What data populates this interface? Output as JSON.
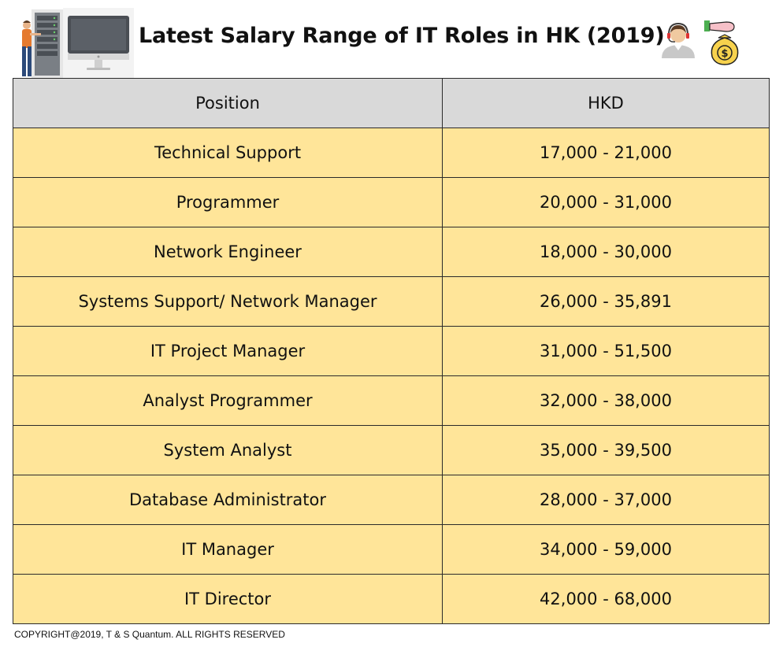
{
  "header": {
    "title": "Latest Salary Range of IT Roles in HK (2019)",
    "icons": [
      "server-technician-icon",
      "monitor-icon",
      "headset-agent-icon",
      "money-bag-icon"
    ]
  },
  "table": {
    "columns": [
      "Position",
      "HKD"
    ],
    "rows": [
      {
        "position": "Technical Support",
        "hkd": "17,000 - 21,000"
      },
      {
        "position": "Programmer",
        "hkd": "20,000 - 31,000"
      },
      {
        "position": "Network Engineer",
        "hkd": "18,000 - 30,000"
      },
      {
        "position": "Systems Support/ Network Manager",
        "hkd": "26,000 - 35,891"
      },
      {
        "position": "IT Project Manager",
        "hkd": "31,000 - 51,500"
      },
      {
        "position": "Analyst Programmer",
        "hkd": "32,000 - 38,000"
      },
      {
        "position": "System Analyst",
        "hkd": "35,000 - 39,500"
      },
      {
        "position": "Database Administrator",
        "hkd": "28,000 - 37,000"
      },
      {
        "position": "IT Manager",
        "hkd": "34,000 - 59,000"
      },
      {
        "position": "IT Director",
        "hkd": "42,000 - 68,000"
      }
    ]
  },
  "colors": {
    "header_bg": "#d9d9d9",
    "row_bg": "#ffe599",
    "border": "#2a2a2a"
  },
  "footer": {
    "copyright": "COPYRIGHT@2019, T & S Quantum. ALL RIGHTS RESERVED"
  }
}
